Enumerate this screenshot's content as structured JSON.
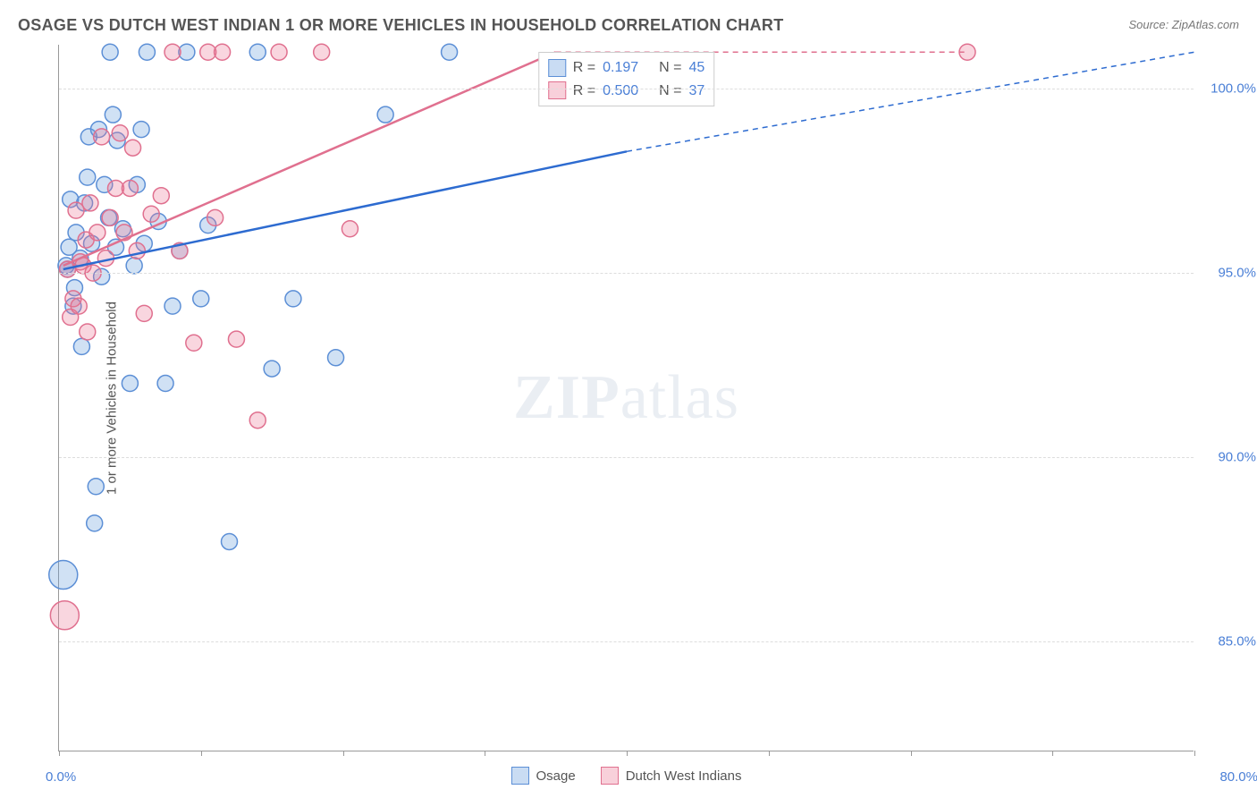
{
  "title": "OSAGE VS DUTCH WEST INDIAN 1 OR MORE VEHICLES IN HOUSEHOLD CORRELATION CHART",
  "source": "Source: ZipAtlas.com",
  "ylabel": "1 or more Vehicles in Household",
  "watermark_bold": "ZIP",
  "watermark_rest": "atlas",
  "chart": {
    "type": "scatter",
    "background": "#ffffff",
    "grid_color": "#dddddd",
    "grid_dash": "6,5",
    "axis_color": "#999999",
    "label_color": "#555555",
    "tick_label_color": "#4a7fd6",
    "xlim": [
      0,
      80
    ],
    "ylim": [
      82,
      101.2
    ],
    "x_ticks": [
      0,
      10,
      20,
      30,
      40,
      50,
      60,
      70,
      80
    ],
    "x_tick_labels_shown": {
      "0": "0.0%",
      "80": "80.0%"
    },
    "y_ticks": [
      85,
      90,
      95,
      100
    ],
    "y_tick_labels": {
      "85": "85.0%",
      "90": "90.0%",
      "95": "95.0%",
      "100": "100.0%"
    },
    "marker_radius": 9,
    "marker_radius_large": 16,
    "marker_stroke_width": 1.5,
    "trend_stroke_width": 2.5,
    "trend_dash_width": 1.5,
    "trend_dash": "6,5",
    "series": {
      "osage": {
        "label": "Osage",
        "fill": "rgba(100,155,220,0.30)",
        "stroke": "#5c8fd6",
        "trend_stroke": "#2d6bd0",
        "trend": {
          "x1": 0.3,
          "y1": 95.1,
          "x2": 40,
          "y2": 98.3
        },
        "trend_dash_ext": {
          "x1": 40,
          "y1": 98.3,
          "x2": 80,
          "y2": 101.0
        },
        "points": [
          {
            "x": 0.3,
            "y": 86.8,
            "r": 16
          },
          {
            "x": 0.5,
            "y": 95.2
          },
          {
            "x": 0.6,
            "y": 95.1
          },
          {
            "x": 0.7,
            "y": 95.7
          },
          {
            "x": 0.8,
            "y": 97.0
          },
          {
            "x": 1.0,
            "y": 94.1
          },
          {
            "x": 1.1,
            "y": 94.6
          },
          {
            "x": 1.2,
            "y": 96.1
          },
          {
            "x": 1.5,
            "y": 95.4
          },
          {
            "x": 1.6,
            "y": 93.0
          },
          {
            "x": 1.8,
            "y": 96.9
          },
          {
            "x": 2.0,
            "y": 97.6
          },
          {
            "x": 2.1,
            "y": 98.7
          },
          {
            "x": 2.3,
            "y": 95.8
          },
          {
            "x": 2.5,
            "y": 88.2
          },
          {
            "x": 2.6,
            "y": 89.2
          },
          {
            "x": 2.8,
            "y": 98.9
          },
          {
            "x": 3.0,
            "y": 94.9
          },
          {
            "x": 3.2,
            "y": 97.4
          },
          {
            "x": 3.5,
            "y": 96.5
          },
          {
            "x": 3.6,
            "y": 101.0
          },
          {
            "x": 3.8,
            "y": 99.3
          },
          {
            "x": 4.0,
            "y": 95.7
          },
          {
            "x": 4.1,
            "y": 98.6
          },
          {
            "x": 4.5,
            "y": 96.2
          },
          {
            "x": 5.0,
            "y": 92.0
          },
          {
            "x": 5.3,
            "y": 95.2
          },
          {
            "x": 5.5,
            "y": 97.4
          },
          {
            "x": 5.8,
            "y": 98.9
          },
          {
            "x": 6.0,
            "y": 95.8
          },
          {
            "x": 6.2,
            "y": 101.0
          },
          {
            "x": 7.0,
            "y": 96.4
          },
          {
            "x": 7.5,
            "y": 92.0
          },
          {
            "x": 8.0,
            "y": 94.1
          },
          {
            "x": 8.5,
            "y": 95.6
          },
          {
            "x": 9.0,
            "y": 101.0
          },
          {
            "x": 10.0,
            "y": 94.3
          },
          {
            "x": 10.5,
            "y": 96.3
          },
          {
            "x": 12.0,
            "y": 87.7
          },
          {
            "x": 14.0,
            "y": 101.0
          },
          {
            "x": 15.0,
            "y": 92.4
          },
          {
            "x": 16.5,
            "y": 94.3
          },
          {
            "x": 19.5,
            "y": 92.7
          },
          {
            "x": 23.0,
            "y": 99.3
          },
          {
            "x": 27.5,
            "y": 101.0
          }
        ]
      },
      "dutch": {
        "label": "Dutch West Indians",
        "fill": "rgba(235,120,150,0.30)",
        "stroke": "#e0708f",
        "trend_stroke": "#e0708f",
        "trend": {
          "x1": 0.3,
          "y1": 95.2,
          "x2": 35,
          "y2": 101.0
        },
        "trend_dash_ext": {
          "x1": 35,
          "y1": 101.0,
          "x2": 64,
          "y2": 101.0
        },
        "points": [
          {
            "x": 0.4,
            "y": 85.7,
            "r": 16
          },
          {
            "x": 0.6,
            "y": 95.1
          },
          {
            "x": 0.8,
            "y": 93.8
          },
          {
            "x": 1.0,
            "y": 94.3
          },
          {
            "x": 1.2,
            "y": 96.7
          },
          {
            "x": 1.4,
            "y": 94.1
          },
          {
            "x": 1.5,
            "y": 95.3
          },
          {
            "x": 1.7,
            "y": 95.2
          },
          {
            "x": 1.9,
            "y": 95.9
          },
          {
            "x": 2.0,
            "y": 93.4
          },
          {
            "x": 2.2,
            "y": 96.9
          },
          {
            "x": 2.4,
            "y": 95.0
          },
          {
            "x": 2.7,
            "y": 96.1
          },
          {
            "x": 3.0,
            "y": 98.7
          },
          {
            "x": 3.3,
            "y": 95.4
          },
          {
            "x": 3.6,
            "y": 96.5
          },
          {
            "x": 4.0,
            "y": 97.3
          },
          {
            "x": 4.3,
            "y": 98.8
          },
          {
            "x": 4.6,
            "y": 96.1
          },
          {
            "x": 5.0,
            "y": 97.3
          },
          {
            "x": 5.2,
            "y": 98.4
          },
          {
            "x": 5.5,
            "y": 95.6
          },
          {
            "x": 6.0,
            "y": 93.9
          },
          {
            "x": 6.5,
            "y": 96.6
          },
          {
            "x": 7.2,
            "y": 97.1
          },
          {
            "x": 8.0,
            "y": 101.0
          },
          {
            "x": 8.5,
            "y": 95.6
          },
          {
            "x": 9.5,
            "y": 93.1
          },
          {
            "x": 10.5,
            "y": 101.0
          },
          {
            "x": 11.0,
            "y": 96.5
          },
          {
            "x": 11.5,
            "y": 101.0
          },
          {
            "x": 12.5,
            "y": 93.2
          },
          {
            "x": 14.0,
            "y": 91.0
          },
          {
            "x": 15.5,
            "y": 101.0
          },
          {
            "x": 18.5,
            "y": 101.0
          },
          {
            "x": 20.5,
            "y": 96.2
          },
          {
            "x": 64.0,
            "y": 101.0
          }
        ]
      }
    },
    "legend_bottom": [
      "osage",
      "dutch"
    ],
    "stats": [
      {
        "series": "osage",
        "r_label": "R =",
        "r": "0.197",
        "n_label": "N =",
        "n": "45"
      },
      {
        "series": "dutch",
        "r_label": "R =",
        "r": "0.500",
        "n_label": "N =",
        "n": "37"
      }
    ]
  }
}
